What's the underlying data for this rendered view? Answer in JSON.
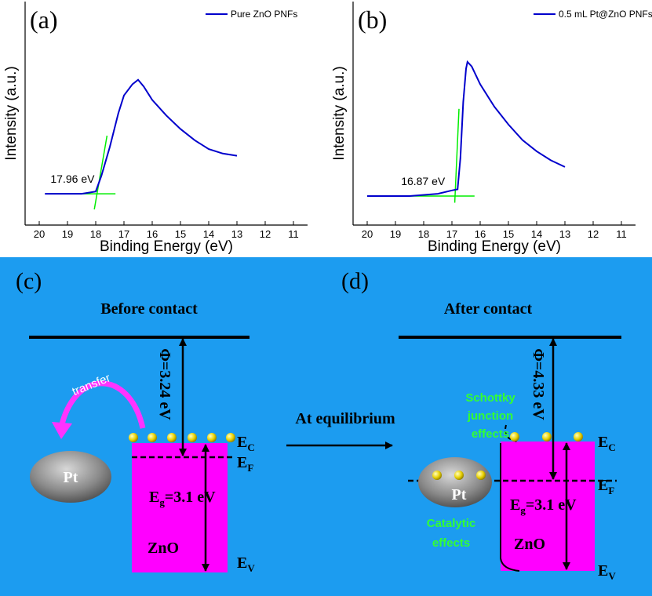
{
  "chart_data": [
    {
      "type": "line",
      "panel_label": "(a)",
      "x_label": "Binding Energy (eV)",
      "y_label": "Intensity (a.u.)",
      "xlim": [
        20.5,
        10.5
      ],
      "xticks": [
        20,
        19,
        18,
        17,
        16,
        15,
        14,
        13,
        12,
        11
      ],
      "ylim": [
        0,
        100
      ],
      "legend": "upper right",
      "series": [
        {
          "name": "Pure ZnO PNFs",
          "color": "#0000cc",
          "x": [
            19.8,
            18.5,
            18.0,
            17.8,
            17.5,
            17.2,
            17.0,
            16.7,
            16.5,
            16.3,
            16.0,
            15.5,
            15.0,
            14.5,
            14.0,
            13.5,
            13.0
          ],
          "values": [
            14,
            14,
            15,
            22,
            35,
            50,
            58,
            63,
            65,
            62,
            56,
            49,
            43,
            38,
            34,
            32,
            31
          ]
        }
      ],
      "fit_lines": [
        {
          "color": "#00ee00",
          "x": [
            19.6,
            17.3
          ],
          "values": [
            14,
            14
          ]
        },
        {
          "color": "#00ee00",
          "x": [
            18.05,
            17.6
          ],
          "values": [
            7,
            40
          ]
        }
      ],
      "annotation": "17.96 eV"
    },
    {
      "type": "line",
      "panel_label": "(b)",
      "x_label": "Binding Energy (eV)",
      "y_label": "Intensity (a.u.)",
      "xlim": [
        20.5,
        10.5
      ],
      "xticks": [
        20,
        19,
        18,
        17,
        16,
        15,
        14,
        13,
        12,
        11
      ],
      "ylim": [
        0,
        100
      ],
      "legend": "upper right",
      "series": [
        {
          "name": "0.5 mL Pt@ZnO PNFs",
          "color": "#0000cc",
          "x": [
            20.0,
            18.5,
            17.5,
            17.0,
            16.8,
            16.7,
            16.6,
            16.5,
            16.45,
            16.3,
            16.0,
            15.5,
            15.0,
            14.5,
            14.0,
            13.5,
            13.0
          ],
          "values": [
            13,
            13,
            14,
            15.5,
            16,
            30,
            55,
            70,
            73,
            71,
            63,
            53,
            45,
            38,
            33,
            29,
            26
          ]
        }
      ],
      "fit_lines": [
        {
          "color": "#00ee00",
          "x": [
            18.8,
            16.2
          ],
          "values": [
            13,
            13
          ]
        },
        {
          "color": "#00ee00",
          "x": [
            16.9,
            16.75
          ],
          "values": [
            10,
            52
          ]
        }
      ],
      "annotation": "16.87 eV"
    }
  ],
  "diagram": {
    "panel_c": "(c)",
    "panel_d": "(d)",
    "before": "Before contact",
    "after": "After contact",
    "phi_before": "Φ=3.24 eV",
    "phi_after": "Φ=4.33 eV",
    "transfer": "transfer",
    "pt": "Pt",
    "zno": "ZnO",
    "eg": [
      "E",
      "g",
      "=3.1 eV"
    ],
    "ec": [
      "E",
      "C"
    ],
    "ef": [
      "E",
      "F"
    ],
    "ev": [
      "E",
      "V"
    ],
    "equilibrium": "At equilibrium",
    "schottky": [
      "Schottky",
      "junction",
      "effects"
    ],
    "catalytic": [
      "Catalytic",
      "effects"
    ]
  }
}
